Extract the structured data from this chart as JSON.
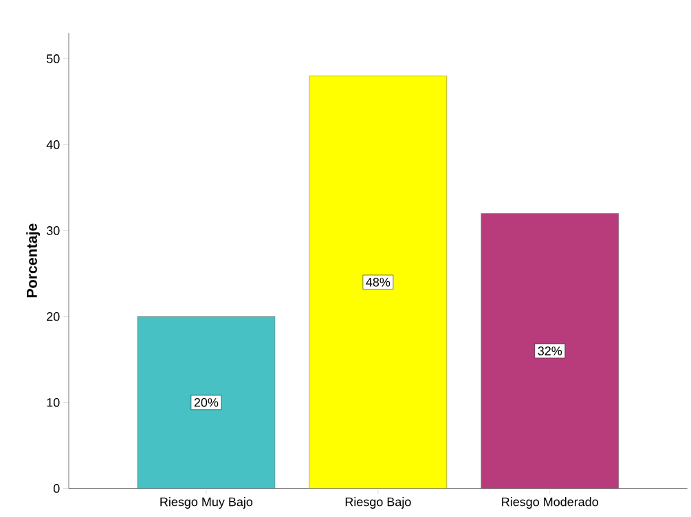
{
  "chart_data": {
    "type": "bar",
    "ylabel": "Porcentaje",
    "categories": [
      "Riesgo Muy Bajo",
      "Riesgo Bajo",
      "Riesgo Moderado"
    ],
    "values": [
      20,
      48,
      32
    ],
    "colors": [
      "#48c1c4",
      "#ffff00",
      "#b83c7c"
    ],
    "value_labels": [
      "20%",
      "48%",
      "32%"
    ],
    "ylim": [
      0,
      53
    ],
    "yticks": [
      0,
      10,
      20,
      30,
      40,
      50
    ]
  }
}
